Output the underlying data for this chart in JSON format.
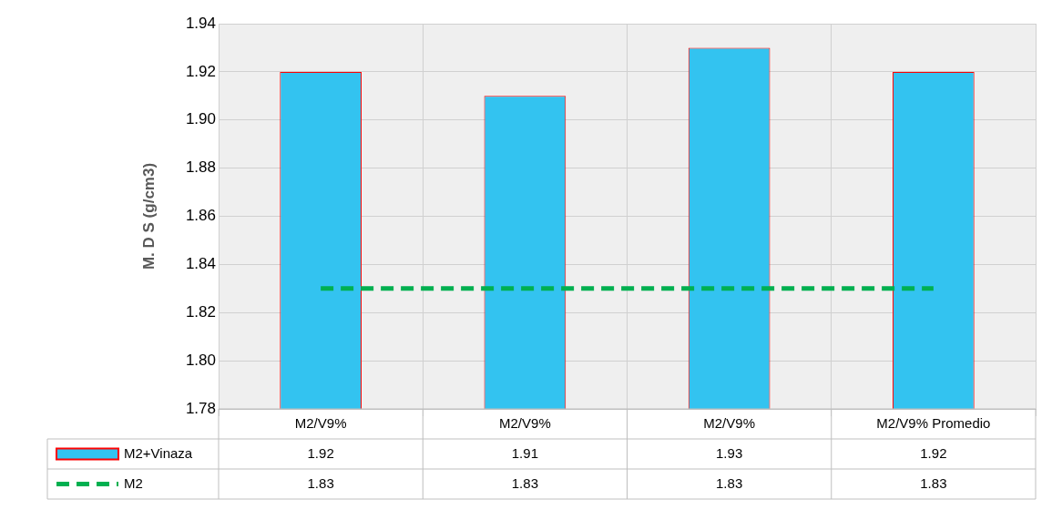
{
  "chart_data": {
    "type": "bar",
    "ylabel": "M. D S (g/cm3)",
    "categories": [
      "M2/V9%",
      "M2/V9%",
      "M2/V9%",
      "M2/V9% Promedio"
    ],
    "series": [
      {
        "name": "M2+Vinaza",
        "color": "#33c3f0",
        "values": [
          1.92,
          1.91,
          1.93,
          1.92
        ]
      },
      {
        "name": "M2",
        "type": "line",
        "color": "#00b050",
        "line_style": "dashed",
        "marker": "none",
        "values": [
          1.83,
          1.83,
          1.83,
          1.83
        ]
      }
    ],
    "ylim": [
      1.78,
      1.94
    ],
    "yticks": [
      1.78,
      {
        "value": 1.8,
        "label": "1.80"
      },
      1.82,
      1.84,
      1.86,
      1.88,
      {
        "value": 1.9,
        "label": "1.90"
      },
      1.92,
      1.94
    ],
    "grid": true,
    "legend": "bottom",
    "data_labels": true
  }
}
